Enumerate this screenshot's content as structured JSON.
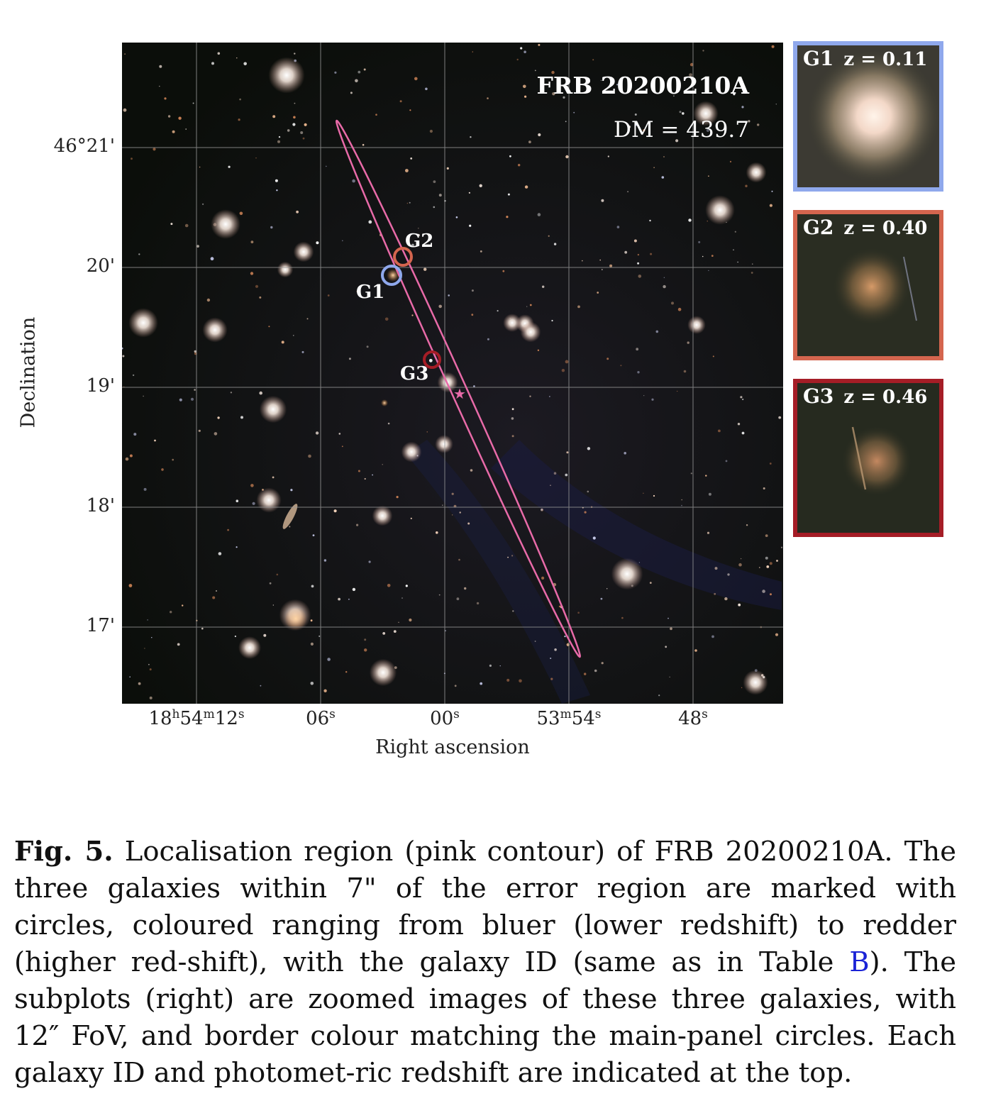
{
  "figure": {
    "title": "FRB 20200210A",
    "dm_label": "DM = 439.7",
    "y_axis_label": "Declination",
    "x_axis_label": "Right ascension",
    "y_ticks": [
      "46°21'",
      "20'",
      "19'",
      "18'",
      "17'"
    ],
    "x_ticks": [
      {
        "main": "18",
        "h": "h",
        "m_val": "54",
        "m": "m",
        "s_val": "12",
        "s": "s"
      },
      {
        "main": "",
        "h": "",
        "m_val": "",
        "m": "",
        "s_val": "06",
        "s": "s"
      },
      {
        "main": "",
        "h": "",
        "m_val": "",
        "m": "",
        "s_val": "00",
        "s": "s"
      },
      {
        "main": "",
        "h": "",
        "m_val": "53",
        "m": "m",
        "s_val": "54",
        "s": "s"
      },
      {
        "main": "",
        "h": "",
        "m_val": "",
        "m": "",
        "s_val": "48",
        "s": "s"
      }
    ],
    "galaxy_markers": [
      "G1",
      "G2",
      "G3"
    ],
    "colors": {
      "G1": "#8fa8ec",
      "G2": "#d4654e",
      "G3": "#a51d26",
      "contour": "#e86aa8",
      "grid": "#9a9a9a"
    },
    "insets": [
      {
        "id": "G1",
        "z": "z = 0.11"
      },
      {
        "id": "G2",
        "z": "z = 0.40"
      },
      {
        "id": "G3",
        "z": "z = 0.46"
      }
    ]
  },
  "caption": {
    "fig_label": "Fig. 5.",
    "text_1": " Localisation region (pink contour) of FRB 20200210A. The three galaxies within 7\" of the error region are marked with circles, coloured ranging from bluer (lower redshift) to redder (higher red-shift), with the galaxy ID (same as in Table ",
    "table_ref": "B",
    "text_2": "). The subplots (right) are zoomed images of these three galaxies, with 12″ FoV, and border colour matching the main-panel circles. Each galaxy ID and photomet-ric redshift are indicated at the top."
  }
}
